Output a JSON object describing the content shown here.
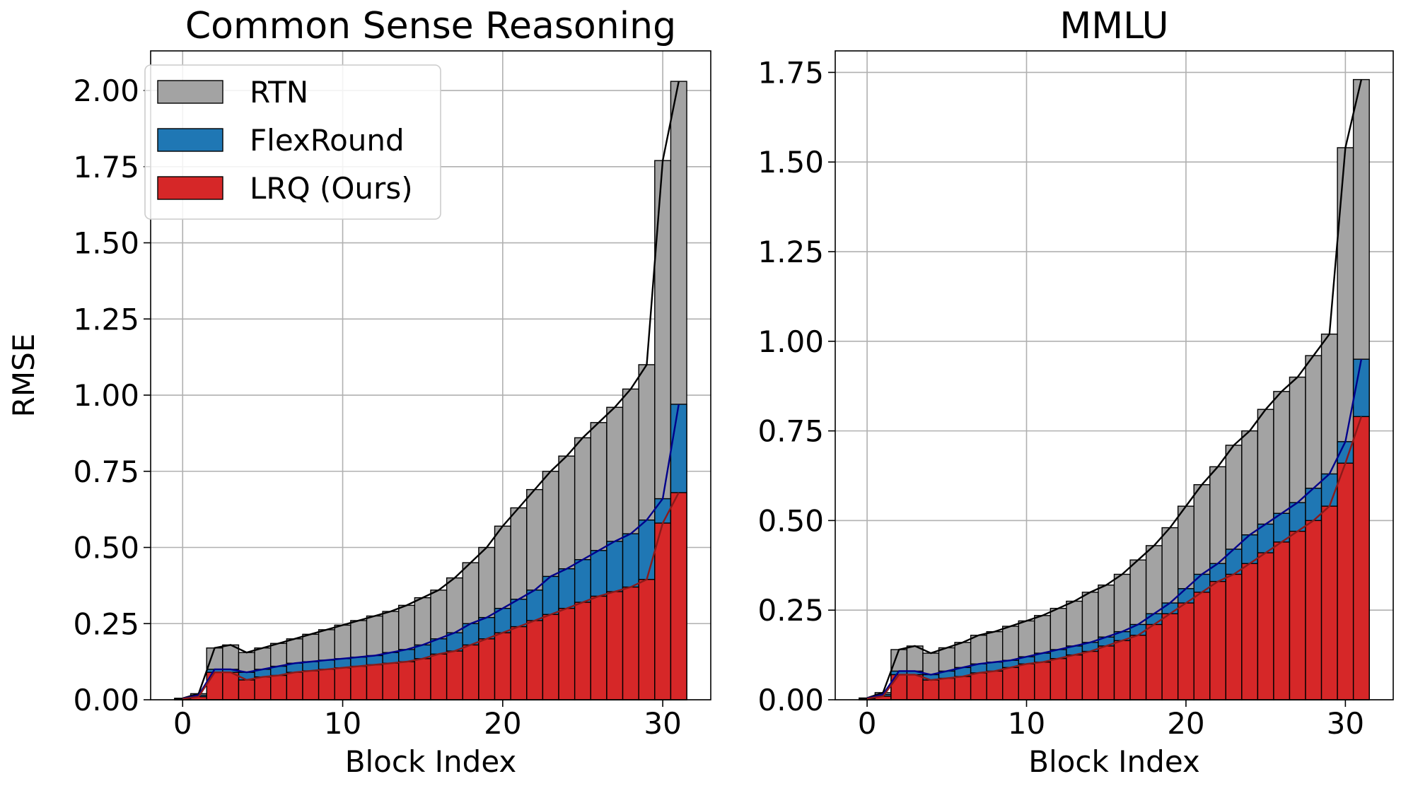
{
  "chart_data": [
    {
      "type": "bar",
      "title": "Common Sense Reasoning",
      "xlabel": "Block Index",
      "ylabel": "RMSE",
      "xlim": [
        -2,
        33
      ],
      "ylim": [
        0,
        2.13
      ],
      "xticks": [
        0,
        10,
        20,
        30
      ],
      "yticks": [
        0.0,
        0.25,
        0.5,
        0.75,
        1.0,
        1.25,
        1.5,
        1.75,
        2.0
      ],
      "ytick_labels": [
        "0.00",
        "0.25",
        "0.50",
        "0.75",
        "1.00",
        "1.25",
        "1.50",
        "1.75",
        "2.00"
      ],
      "grid": true,
      "legend_position": "top-left",
      "x": [
        0,
        1,
        2,
        3,
        4,
        5,
        6,
        7,
        8,
        9,
        10,
        11,
        12,
        13,
        14,
        15,
        16,
        17,
        18,
        19,
        20,
        21,
        22,
        23,
        24,
        25,
        26,
        27,
        28,
        29,
        30,
        31
      ],
      "series": [
        {
          "name": "RTN",
          "color": "#a3a3a3",
          "line_color": "#000000",
          "values": [
            0.005,
            0.02,
            0.17,
            0.18,
            0.155,
            0.17,
            0.185,
            0.2,
            0.215,
            0.23,
            0.245,
            0.26,
            0.275,
            0.29,
            0.31,
            0.335,
            0.36,
            0.4,
            0.45,
            0.5,
            0.57,
            0.63,
            0.69,
            0.75,
            0.8,
            0.86,
            0.91,
            0.96,
            1.02,
            1.1,
            1.77,
            2.03
          ]
        },
        {
          "name": "FlexRound",
          "color": "#1f77b4",
          "line_color": "#00008b",
          "values": [
            0.004,
            0.015,
            0.1,
            0.1,
            0.09,
            0.1,
            0.11,
            0.12,
            0.125,
            0.13,
            0.135,
            0.14,
            0.145,
            0.155,
            0.165,
            0.18,
            0.2,
            0.22,
            0.25,
            0.27,
            0.3,
            0.33,
            0.36,
            0.405,
            0.43,
            0.46,
            0.49,
            0.52,
            0.545,
            0.59,
            0.66,
            0.97
          ]
        },
        {
          "name": "LRQ (Ours)",
          "color": "#d62728",
          "line_color": "#8b1a1a",
          "values": [
            0.003,
            0.01,
            0.09,
            0.09,
            0.065,
            0.075,
            0.08,
            0.09,
            0.095,
            0.1,
            0.105,
            0.11,
            0.115,
            0.12,
            0.125,
            0.135,
            0.15,
            0.16,
            0.18,
            0.2,
            0.22,
            0.24,
            0.26,
            0.28,
            0.3,
            0.32,
            0.34,
            0.355,
            0.37,
            0.395,
            0.58,
            0.68
          ]
        }
      ]
    },
    {
      "type": "bar",
      "title": "MMLU",
      "xlabel": "Block Index",
      "ylabel": "",
      "xlim": [
        -2,
        33
      ],
      "ylim": [
        0,
        1.81
      ],
      "xticks": [
        0,
        10,
        20,
        30
      ],
      "yticks": [
        0.0,
        0.25,
        0.5,
        0.75,
        1.0,
        1.25,
        1.5,
        1.75
      ],
      "ytick_labels": [
        "0.00",
        "0.25",
        "0.50",
        "0.75",
        "1.00",
        "1.25",
        "1.50",
        "1.75"
      ],
      "grid": true,
      "legend_position": "",
      "x": [
        0,
        1,
        2,
        3,
        4,
        5,
        6,
        7,
        8,
        9,
        10,
        11,
        12,
        13,
        14,
        15,
        16,
        17,
        18,
        19,
        20,
        21,
        22,
        23,
        24,
        25,
        26,
        27,
        28,
        29,
        30,
        31
      ],
      "series": [
        {
          "name": "RTN",
          "color": "#a3a3a3",
          "line_color": "#000000",
          "values": [
            0.005,
            0.02,
            0.14,
            0.15,
            0.13,
            0.145,
            0.16,
            0.18,
            0.19,
            0.205,
            0.22,
            0.235,
            0.255,
            0.275,
            0.3,
            0.32,
            0.35,
            0.39,
            0.43,
            0.48,
            0.54,
            0.6,
            0.65,
            0.71,
            0.75,
            0.81,
            0.86,
            0.9,
            0.96,
            1.02,
            1.54,
            1.73
          ]
        },
        {
          "name": "FlexRound",
          "color": "#1f77b4",
          "line_color": "#00008b",
          "values": [
            0.004,
            0.015,
            0.08,
            0.08,
            0.07,
            0.08,
            0.09,
            0.1,
            0.105,
            0.11,
            0.12,
            0.13,
            0.14,
            0.15,
            0.16,
            0.175,
            0.19,
            0.21,
            0.24,
            0.27,
            0.31,
            0.35,
            0.38,
            0.42,
            0.46,
            0.49,
            0.52,
            0.55,
            0.59,
            0.63,
            0.72,
            0.95
          ]
        },
        {
          "name": "LRQ (Ours)",
          "color": "#d62728",
          "line_color": "#8b1a1a",
          "values": [
            0.003,
            0.01,
            0.07,
            0.07,
            0.055,
            0.06,
            0.065,
            0.075,
            0.08,
            0.09,
            0.1,
            0.105,
            0.115,
            0.125,
            0.135,
            0.15,
            0.165,
            0.18,
            0.21,
            0.24,
            0.27,
            0.3,
            0.33,
            0.35,
            0.38,
            0.41,
            0.44,
            0.47,
            0.5,
            0.54,
            0.66,
            0.79
          ]
        }
      ]
    }
  ]
}
